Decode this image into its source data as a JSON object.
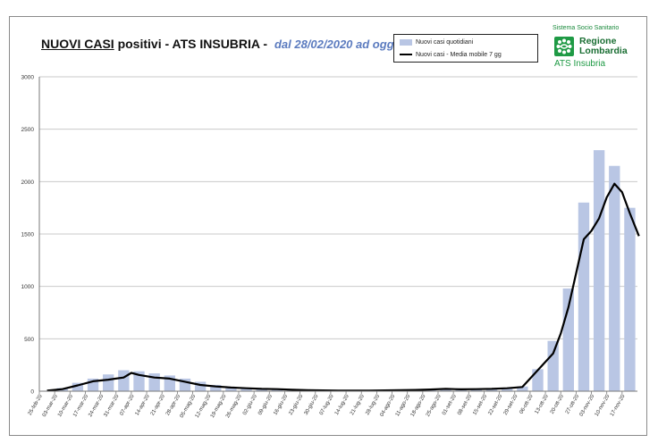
{
  "header": {
    "title_underlined": "NUOVI CASI",
    "title_rest": " positivi - ATS INSUBRIA - ",
    "subtitle": "dal 28/02/2020 ad oggi"
  },
  "legend": {
    "bars_label": "Nuovi casi quotidiani",
    "line_label": "Nuovi casi - Media mobile 7 gg"
  },
  "logo": {
    "system_text": "Sistema Socio Sanitario",
    "region_line1": "Regione",
    "region_line2": "Lombardia",
    "agency": "ATS Insubria"
  },
  "colors": {
    "bars": "#b9c6e4",
    "line": "#000000",
    "grid": "#c9c9c9",
    "brand_green": "#1f9a45"
  },
  "chart_data": {
    "type": "bar",
    "title": "NUOVI CASI positivi - ATS INSUBRIA - dal 28/02/2020 ad oggi",
    "xlabel": "",
    "ylabel": "",
    "ylim": [
      0,
      3000
    ],
    "yticks": [
      0,
      500,
      1000,
      1500,
      2000,
      2500,
      3000
    ],
    "grid": true,
    "legend_position": "top-right",
    "x_tick_labels": [
      "25-feb-20",
      "03-mar-20",
      "10-mar-20",
      "17-mar-20",
      "24-mar-20",
      "31-mar-20",
      "07-apr-20",
      "14-apr-20",
      "21-apr-20",
      "28-apr-20",
      "05-mag-20",
      "12-mag-20",
      "19-mag-20",
      "26-mag-20",
      "02-giu-20",
      "09-giu-20",
      "16-giu-20",
      "23-giu-20",
      "30-giu-20",
      "07-lug-20",
      "14-lug-20",
      "21-lug-20",
      "28-lug-20",
      "04-ago-20",
      "11-ago-20",
      "18-ago-20",
      "25-ago-20",
      "01-set-20",
      "08-set-20",
      "15-set-20",
      "22-set-20",
      "29-set-20",
      "06-ott-20",
      "13-ott-20",
      "20-ott-20",
      "27-ott-20",
      "03-nov-20",
      "10-nov-20",
      "17-nov-20"
    ],
    "series": [
      {
        "name": "Nuovi casi quotidiani",
        "type": "bar",
        "x_start": "2020-02-25",
        "x_step_days": 7,
        "values": [
          5,
          30,
          80,
          120,
          160,
          200,
          190,
          170,
          150,
          120,
          90,
          60,
          40,
          30,
          20,
          15,
          12,
          8,
          6,
          6,
          6,
          6,
          8,
          10,
          12,
          15,
          20,
          25,
          22,
          25,
          28,
          45,
          210,
          480,
          980,
          1800,
          2300,
          2150,
          1750
        ]
      },
      {
        "name": "Nuovi casi - Media mobile 7 gg",
        "type": "line",
        "x": [
          0,
          1,
          2,
          3,
          4,
          5,
          5.5,
          6,
          7,
          8,
          9,
          10,
          11,
          12,
          13,
          14,
          15,
          16,
          17,
          18,
          19,
          20,
          21,
          22,
          23,
          24,
          25,
          26,
          27,
          28,
          29,
          30,
          31,
          32,
          33,
          33.5,
          34,
          35,
          35.5,
          36,
          36.5,
          37,
          37.5,
          38,
          38.6
        ],
        "values": [
          5,
          20,
          55,
          95,
          110,
          130,
          175,
          155,
          130,
          120,
          90,
          60,
          45,
          35,
          28,
          22,
          20,
          14,
          10,
          8,
          6,
          6,
          6,
          8,
          10,
          12,
          16,
          22,
          18,
          20,
          22,
          28,
          40,
          200,
          360,
          550,
          800,
          1450,
          1530,
          1650,
          1850,
          1980,
          1900,
          1700,
          1480
        ]
      }
    ]
  }
}
